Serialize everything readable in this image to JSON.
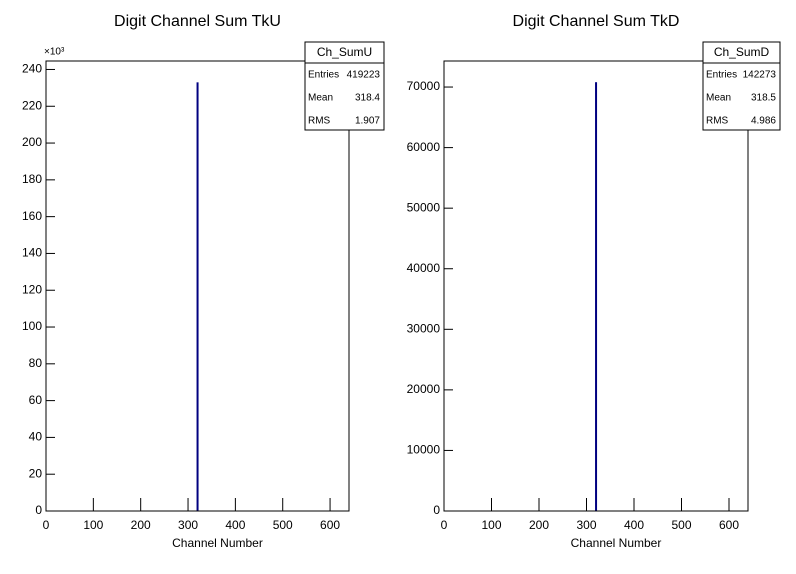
{
  "chart_data": [
    {
      "type": "histogram",
      "title": "Digit Channel Sum TkU",
      "x_label": "Channel Number",
      "y_multiplier": "×10³",
      "bins": [
        318,
        319
      ],
      "values": [
        233
      ],
      "color": "#000080",
      "xlim": [
        0,
        640
      ],
      "xticks": [
        0,
        100,
        200,
        300,
        400,
        500,
        600
      ],
      "ylim": [
        0,
        244.6
      ],
      "yticks": [
        0,
        20,
        40,
        60,
        80,
        100,
        120,
        140,
        160,
        180,
        200,
        220,
        240
      ],
      "stats": {
        "title": "Ch_SumU",
        "rows": [
          {
            "label": "Entries",
            "value": 419223
          },
          {
            "label": "Mean",
            "value": 318.4
          },
          {
            "label": "RMS",
            "value": 1.907
          }
        ]
      }
    },
    {
      "type": "histogram",
      "title": "Digit Channel Sum TkD",
      "x_label": "Channel Number",
      "bins": [
        318,
        319
      ],
      "values": [
        70800
      ],
      "color": "#000080",
      "xlim": [
        0,
        640
      ],
      "xticks": [
        0,
        100,
        200,
        300,
        400,
        500,
        600
      ],
      "ylim": [
        0,
        74300
      ],
      "yticks": [
        0,
        10000,
        20000,
        30000,
        40000,
        50000,
        60000,
        70000
      ],
      "stats": {
        "title": "Ch_SumD",
        "rows": [
          {
            "label": "Entries",
            "value": 142273
          },
          {
            "label": "Mean",
            "value": 318.5
          },
          {
            "label": "RMS",
            "value": 4.986
          }
        ]
      }
    }
  ]
}
